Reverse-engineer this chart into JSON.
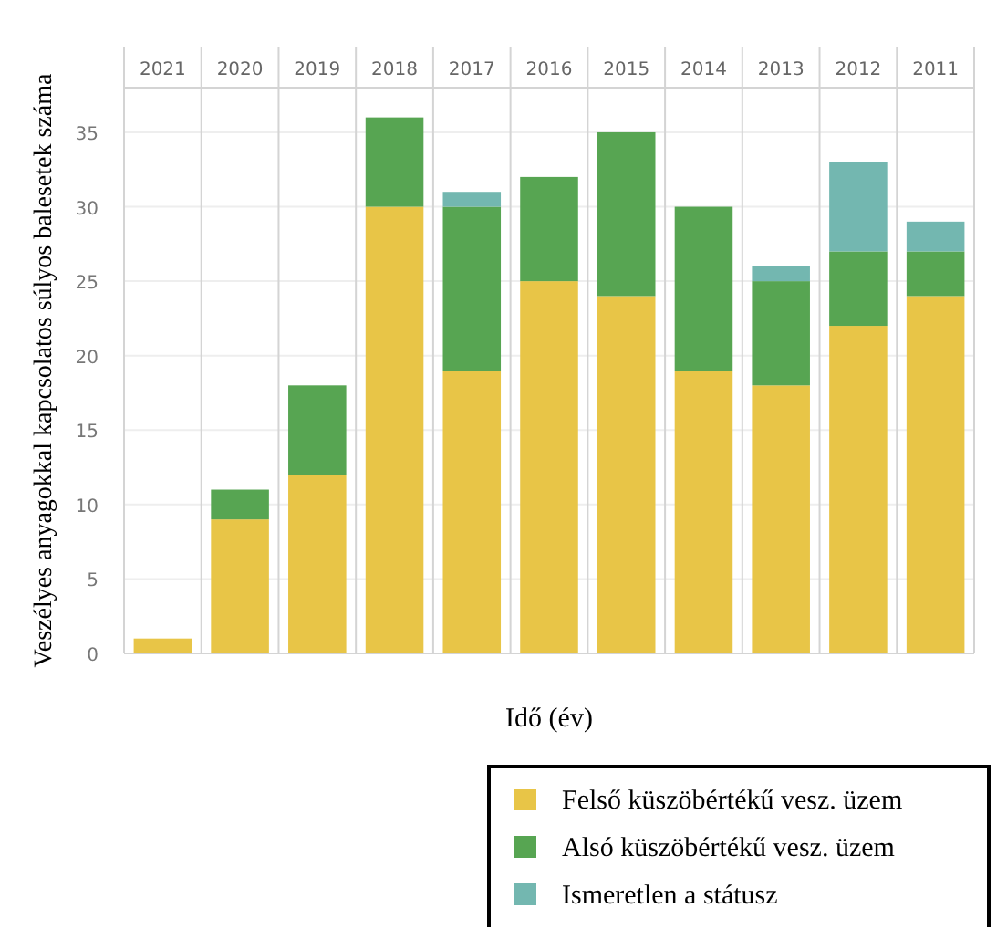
{
  "chart_data": {
    "type": "bar",
    "stacked": true,
    "xlabel": "Idő (év)",
    "ylabel": "Veszélyes anyagokkal kapcsolatos súlyos balesetek száma",
    "categories": [
      "2021",
      "2020",
      "2019",
      "2018",
      "2017",
      "2016",
      "2015",
      "2014",
      "2013",
      "2012",
      "2011"
    ],
    "series": [
      {
        "name": "Felső küszöbértékű vesz. üzem",
        "color": "#e8c547",
        "values": [
          1,
          9,
          12,
          30,
          19,
          25,
          24,
          19,
          18,
          22,
          24
        ]
      },
      {
        "name": "Alsó küszöbértékű vesz. üzem",
        "color": "#57a552",
        "values": [
          0,
          2,
          6,
          6,
          11,
          7,
          11,
          11,
          7,
          5,
          3
        ]
      },
      {
        "name": "Ismeretlen a státusz",
        "color": "#73b7b0",
        "values": [
          0,
          0,
          0,
          0,
          1,
          0,
          0,
          0,
          1,
          6,
          2
        ]
      }
    ],
    "ylim": [
      0,
      38
    ],
    "yticks": [
      0,
      5,
      10,
      15,
      20,
      25,
      30,
      35
    ],
    "grid": "y",
    "legend": "bottom"
  }
}
